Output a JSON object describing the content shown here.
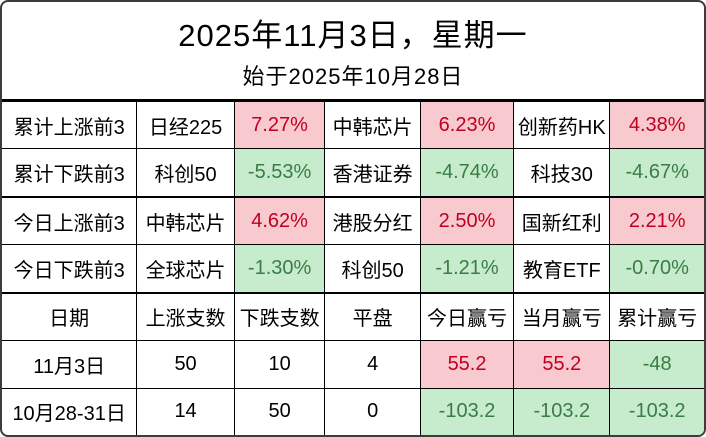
{
  "title": {
    "line1": "2025年11月3日，星期一",
    "line2": "始于2025年10月28日"
  },
  "colors": {
    "gain_bg": "#f8c9cf",
    "gain_text": "#c00020",
    "loss_bg": "#c6ebcd",
    "loss_text": "#3a7d44",
    "grid": "#000000"
  },
  "summary_rows": [
    {
      "label": "累计上涨前3",
      "items": [
        {
          "name": "日经225",
          "value": "7.27%",
          "trend": "up"
        },
        {
          "name": "中韩芯片",
          "value": "6.23%",
          "trend": "up"
        },
        {
          "name": "创新药HK",
          "value": "4.38%",
          "trend": "up"
        }
      ]
    },
    {
      "label": "累计下跌前3",
      "items": [
        {
          "name": "科创50",
          "value": "-5.53%",
          "trend": "down"
        },
        {
          "name": "香港证券",
          "value": "-4.74%",
          "trend": "down"
        },
        {
          "name": "科技30",
          "value": "-4.67%",
          "trend": "down"
        }
      ]
    },
    {
      "label": "今日上涨前3",
      "items": [
        {
          "name": "中韩芯片",
          "value": "4.62%",
          "trend": "up"
        },
        {
          "name": "港股分红",
          "value": "2.50%",
          "trend": "up"
        },
        {
          "name": "国新红利",
          "value": "2.21%",
          "trend": "up"
        }
      ]
    },
    {
      "label": "今日下跌前3",
      "items": [
        {
          "name": "全球芯片",
          "value": "-1.30%",
          "trend": "down"
        },
        {
          "name": "科创50",
          "value": "-1.21%",
          "trend": "down"
        },
        {
          "name": "教育ETF",
          "value": "-0.70%",
          "trend": "down"
        }
      ]
    }
  ],
  "stats": {
    "headers": [
      "日期",
      "上涨支数",
      "下跌支数",
      "平盘",
      "今日赢亏",
      "当月赢亏",
      "累计赢亏"
    ],
    "rows": [
      {
        "date": "11月3日",
        "up": "50",
        "down": "10",
        "flat": "4",
        "day": {
          "value": "55.2",
          "trend": "up"
        },
        "month": {
          "value": "55.2",
          "trend": "up"
        },
        "total": {
          "value": "-48",
          "trend": "down"
        }
      },
      {
        "date": "10月28-31日",
        "up": "14",
        "down": "50",
        "flat": "0",
        "day": {
          "value": "-103.2",
          "trend": "down"
        },
        "month": {
          "value": "-103.2",
          "trend": "down"
        },
        "total": {
          "value": "-103.2",
          "trend": "down"
        }
      }
    ]
  }
}
